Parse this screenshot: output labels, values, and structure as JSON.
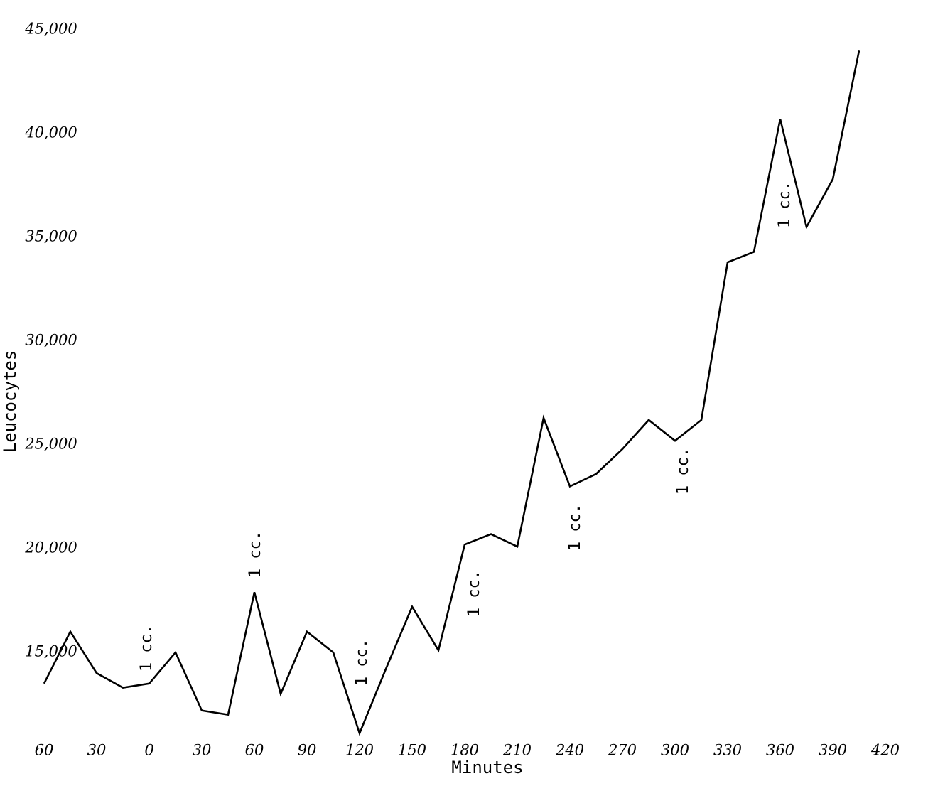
{
  "chart_data": {
    "type": "line",
    "x_label": "Minutes",
    "y_label": "Leucocytes",
    "x": [
      -60,
      -45,
      -30,
      -15,
      0,
      15,
      30,
      45,
      60,
      75,
      90,
      105,
      120,
      135,
      150,
      165,
      180,
      195,
      210,
      225,
      240,
      255,
      270,
      285,
      300,
      315,
      330,
      345,
      360,
      375,
      390,
      405
    ],
    "series": [
      {
        "name": "Leucocytes",
        "color": "#000000",
        "values": [
          13500,
          16000,
          14000,
          13300,
          13500,
          15000,
          12200,
          12000,
          17900,
          13000,
          16000,
          15000,
          11100,
          14200,
          17200,
          15100,
          20200,
          20700,
          20100,
          26300,
          23000,
          23600,
          24800,
          26200,
          25200,
          26200,
          33800,
          34300,
          40700,
          35500,
          37800,
          44000
        ]
      }
    ],
    "xlim": [
      -75,
      435
    ],
    "ylim": [
      10000,
      45000
    ],
    "xticks": [
      {
        "value": -60,
        "label": "60"
      },
      {
        "value": -30,
        "label": "30"
      },
      0,
      30,
      60,
      90,
      120,
      150,
      180,
      210,
      240,
      270,
      300,
      330,
      360,
      390,
      420
    ],
    "yticks": [
      {
        "value": 15000,
        "label": "15,000"
      },
      {
        "value": 20000,
        "label": "20,000"
      },
      {
        "value": 25000,
        "label": "25,000"
      },
      {
        "value": 30000,
        "label": "30,000"
      },
      {
        "value": 35000,
        "label": "35,000"
      },
      {
        "value": 40000,
        "label": "40,000"
      },
      {
        "value": 45000,
        "label": "45,000"
      }
    ],
    "annotations": [
      "1 cc.",
      "1 cc.",
      "1 cc.",
      "1 cc.",
      "1 cc.",
      "1 cc.",
      "1 cc."
    ],
    "grid": false
  }
}
